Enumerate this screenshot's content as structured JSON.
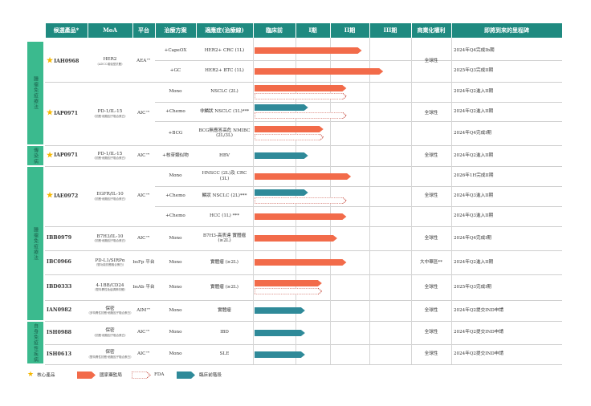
{
  "header": {
    "product": "候選產品*",
    "moa": "MoA",
    "platform": "平台",
    "regimen": "治療方案",
    "indication": "適應症",
    "indication_sub": "(治療線)",
    "preclinical": "臨床前",
    "phase1": "I期",
    "phase2": "II期",
    "phase3": "III期",
    "rights": "商業化權利",
    "milestone": "即將到來的里程碑"
  },
  "categories": {
    "oncology_a": "腫瘤免疫療法",
    "infectious": "傳染病",
    "oncology_b": "腫瘤免疫療法",
    "autoimmune": "自身免疫性疾病"
  },
  "rows": [
    {
      "product": "IAH0968",
      "star": true,
      "moa": "HER2",
      "moa_sub": "(ADCC增強型抗體)",
      "platform": "AEA™",
      "regimen": "+CapeOX",
      "indication": "HER2+ CRC (1L)",
      "bars": [
        {
          "type": "nmpa",
          "progress": 0.5
        }
      ],
      "rights": "全球性",
      "milestone": "2024年Q4完成Ib期"
    },
    {
      "product": "",
      "star": false,
      "moa": "",
      "moa_sub": "",
      "platform": "",
      "regimen": "+GC",
      "indication": "HER2+ BTC (1L)",
      "bars": [
        {
          "type": "nmpa",
          "progress": 0.64
        }
      ],
      "rights": "",
      "milestone": "2025年Q3完成II期"
    },
    {
      "product": "IAP0971",
      "star": true,
      "moa": "PD-1/IL-15",
      "moa_sub": "(抗體-細胞因子融合蛋白)",
      "platform": "AIC™",
      "regimen": "Mono",
      "indication": "NSCLC (2L)",
      "bars": [
        {
          "type": "nmpa",
          "progress": 0.4
        },
        {
          "type": "fda",
          "progress": 0.4
        }
      ],
      "rights": "全球性",
      "milestone": "2024年Q2進入II期"
    },
    {
      "product": "",
      "star": false,
      "moa": "",
      "moa_sub": "",
      "platform": "",
      "regimen": "+Chemo",
      "indication": "非鱗狀 NSCLC (1L)***",
      "bars": [
        {
          "type": "preclinical",
          "progress": 0.15
        },
        {
          "type": "fda",
          "progress": 0.4
        }
      ],
      "rights": "",
      "milestone": "2024年Q2進入II期"
    },
    {
      "product": "",
      "star": false,
      "moa": "",
      "moa_sub": "",
      "platform": "",
      "regimen": "+BCG",
      "indication": "BCG無應答高危 NMIBC (2L/3L)",
      "bars": [
        {
          "type": "nmpa",
          "progress": 0.25
        },
        {
          "type": "fda",
          "progress": 0.25
        }
      ],
      "rights": "",
      "milestone": "2024年Q4完成I期"
    },
    {
      "product": "IAP0971",
      "star": true,
      "moa": "PD-1/IL-15",
      "moa_sub": "(抗體-細胞因子融合蛋白)",
      "platform": "AIC™",
      "regimen": "+核苷類似物",
      "indication": "HBV",
      "bars": [
        {
          "type": "preclinical",
          "progress": 0.15
        }
      ],
      "rights": "全球性",
      "milestone": "2024年Q2進入II期"
    },
    {
      "product": "IAE0972",
      "star": true,
      "moa": "EGFR/IL-10",
      "moa_sub": "(抗體-細胞因子融合蛋白)",
      "platform": "AIC™",
      "regimen": "Mono",
      "indication": "HNSCC (2L)及 CRC (3L)",
      "bars": [
        {
          "type": "nmpa",
          "progress": 0.43
        }
      ],
      "rights": "全球性",
      "milestone": "2026年1H完成II期"
    },
    {
      "product": "",
      "star": false,
      "moa": "",
      "moa_sub": "",
      "platform": "",
      "regimen": "+Chemo",
      "indication": "鱗狀 NSCLC (2L)***",
      "bars": [
        {
          "type": "preclinical",
          "progress": 0.15
        },
        {
          "type": "fda",
          "progress": 0.4
        }
      ],
      "rights": "",
      "milestone": "2024年Q3進入II期"
    },
    {
      "product": "",
      "star": false,
      "moa": "",
      "moa_sub": "",
      "platform": "",
      "regimen": "+Chemo",
      "indication": "HCC (1L) ***",
      "bars": [
        {
          "type": "nmpa",
          "progress": 0.4
        }
      ],
      "rights": "",
      "milestone": "2024年Q3進入II期"
    },
    {
      "product": "IBB0979",
      "star": false,
      "moa": "B7H3/IL-10",
      "moa_sub": "(抗體-細胞因子融合蛋白)",
      "platform": "AIC™",
      "regimen": "Mono",
      "indication": "B7H3-高表達 實體瘤 (≥2L)",
      "bars": [
        {
          "type": "nmpa",
          "progress": 0.34
        }
      ],
      "rights": "全球性",
      "milestone": "2024年Q4完成I期"
    },
    {
      "product": "IBC0966",
      "star": false,
      "moa": "PD-L1/SIRPα",
      "moa_sub": "(雙功能抗體融合蛋白)",
      "platform": "bsFp 平台",
      "regimen": "Mono",
      "indication": "實體瘤 (≥2L)",
      "bars": [
        {
          "type": "nmpa",
          "progress": 0.4
        }
      ],
      "rights": "大中華區**",
      "milestone": "2024年Q2進入II期"
    },
    {
      "product": "IBD0333",
      "star": false,
      "moa": "4-1BB/CD24",
      "moa_sub": "(雙特異性免疫調節抗體)",
      "platform": "bsAb 平台",
      "regimen": "Mono",
      "indication": "實體瘤 (≥2L)",
      "bars": [
        {
          "type": "nmpa",
          "progress": 0.24
        },
        {
          "type": "fda",
          "progress": 0.24
        }
      ],
      "rights": "全球性",
      "milestone": "2025年Q3完成I期"
    },
    {
      "product": "IAN0982",
      "star": false,
      "moa": "保密",
      "moa_sub": "(多特異性抗體-細胞因子融合蛋白)",
      "platform": "AIM™",
      "regimen": "Mono",
      "indication": "實體瘤",
      "bars": [
        {
          "type": "preclinical",
          "progress": 0.13
        }
      ],
      "rights": "全球性",
      "milestone": "2024年Q2提交IND申請"
    },
    {
      "product": "ISH0988",
      "star": false,
      "moa": "保密",
      "moa_sub": "(抗體-細胞因子融合蛋白)",
      "platform": "AIC™",
      "regimen": "Mono",
      "indication": "IBD",
      "bars": [
        {
          "type": "preclinical",
          "progress": 0.13
        }
      ],
      "rights": "全球性",
      "milestone": "2024年Q2提交IND申請"
    },
    {
      "product": "ISH0613",
      "star": false,
      "moa": "保密",
      "moa_sub": "(雙特異性抗體-細胞因子融合蛋白)",
      "platform": "AIC™",
      "regimen": "Mono",
      "indication": "SLE",
      "bars": [
        {
          "type": "preclinical",
          "progress": 0.13
        }
      ],
      "rights": "全球性",
      "milestone": "2024年Q2提交IND申請"
    }
  ],
  "legend": {
    "core": "核心產品",
    "nmpa": "國家藥監局",
    "fda": "FDA",
    "preclinical": "臨床前階段"
  },
  "colors": {
    "header_bg": "#1f8a80",
    "category_bg": "#3bba8e",
    "nmpa": "#f26b4a",
    "fda": "#c0392b",
    "preclinical": "#2f8a99",
    "star": "#f5b700"
  }
}
